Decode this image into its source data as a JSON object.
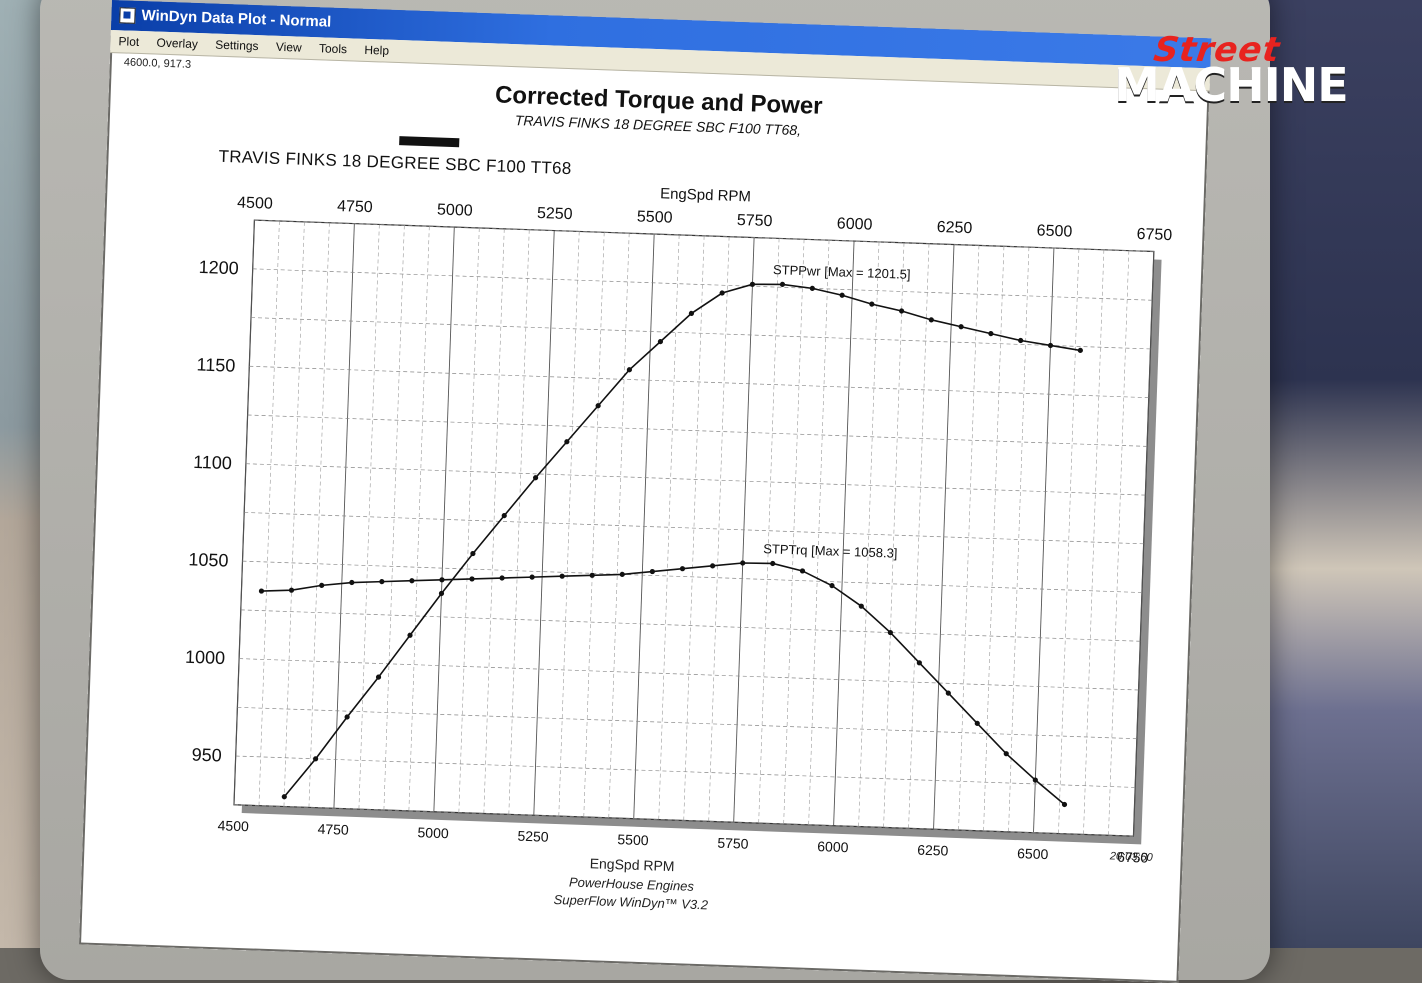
{
  "logo": {
    "line1": "Street",
    "line2": "MACHINE"
  },
  "window": {
    "title": "WinDyn Data Plot - Normal",
    "menu": [
      "Plot",
      "Overlay",
      "Settings",
      "View",
      "Tools",
      "Help"
    ],
    "coord_readout": "4600.0, 917.3",
    "timestamp": "20:03:50",
    "credit_line1": "PowerHouse Engines",
    "credit_line2": "SuperFlow WinDyn™ V3.2"
  },
  "chart_data": {
    "type": "line",
    "title": "Corrected Torque and Power",
    "subtitle": "TRAVIS FINKS 18 DEGREE SBC F100 TT68,",
    "run_label": "TRAVIS FINKS 18 DEGREE SBC F100 TT68",
    "xlabel": "EngSpd RPM",
    "xlim": [
      4500,
      6750
    ],
    "xticks": [
      "4500",
      "4750",
      "5000",
      "5250",
      "5500",
      "5750",
      "6000",
      "6250",
      "6500",
      "6750"
    ],
    "ylim": [
      925,
      1225
    ],
    "yticks": [
      "950",
      "1000",
      "1050",
      "1100",
      "1150",
      "1200"
    ],
    "grid": true,
    "series": [
      {
        "name": "STPPwr",
        "label": "STPPwr [Max = 1201.5]",
        "color": "#111111",
        "x": [
          4625,
          4700,
          4775,
          4850,
          4925,
          5000,
          5075,
          5150,
          5225,
          5300,
          5375,
          5450,
          5525,
          5600,
          5675,
          5750,
          5825,
          5900,
          5975,
          6050,
          6125,
          6200,
          6275,
          6350,
          6425,
          6500,
          6575
        ],
        "y": [
          930,
          950,
          972,
          993,
          1015,
          1037,
          1058,
          1078,
          1098,
          1117,
          1136,
          1155,
          1170,
          1185,
          1196,
          1201,
          1201.5,
          1200,
          1197,
          1193,
          1190,
          1186,
          1183,
          1180,
          1177,
          1175,
          1173
        ]
      },
      {
        "name": "STPTrq",
        "label": "STPTrq [Max = 1058.3]",
        "color": "#111111",
        "x": [
          4550,
          4625,
          4700,
          4775,
          4850,
          4925,
          5000,
          5075,
          5150,
          5225,
          5300,
          5375,
          5450,
          5525,
          5600,
          5675,
          5750,
          5825,
          5900,
          5975,
          6050,
          6125,
          6200,
          6275,
          6350,
          6425,
          6500,
          6575
        ],
        "y": [
          1035,
          1036,
          1039,
          1041,
          1042,
          1043,
          1044,
          1045,
          1046,
          1047,
          1048,
          1049,
          1050,
          1052,
          1054,
          1056,
          1058,
          1058.3,
          1055,
          1048,
          1038,
          1025,
          1010,
          995,
          980,
          965,
          952,
          940
        ]
      }
    ]
  }
}
